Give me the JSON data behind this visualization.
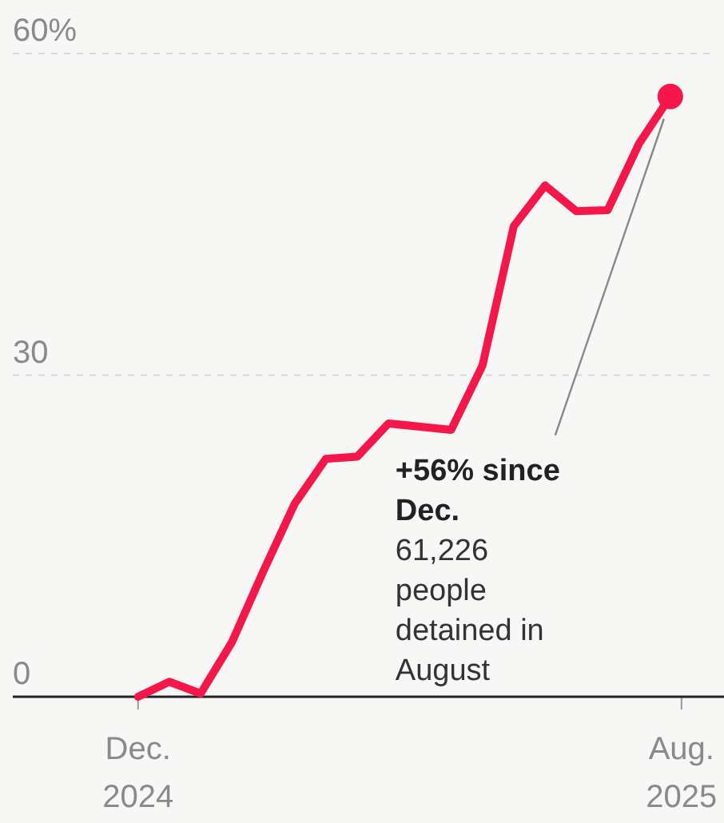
{
  "chart_data": {
    "type": "line",
    "x": [
      "2024-12-01",
      "2024-12-15",
      "2024-12-29",
      "2025-01-12",
      "2025-01-26",
      "2025-02-09",
      "2025-02-23",
      "2025-03-09",
      "2025-03-23",
      "2025-04-06",
      "2025-04-20",
      "2025-05-04",
      "2025-05-18",
      "2025-06-01",
      "2025-06-15",
      "2025-06-29",
      "2025-07-13",
      "2025-07-27"
    ],
    "series": [
      {
        "color": "#f5164a",
        "values": [
          0,
          1.4,
          0.3,
          5.1,
          11.7,
          18,
          22.2,
          22.4,
          25.5,
          25.2,
          24.9,
          30.9,
          43.9,
          47.7,
          45.3,
          45.4,
          51.6,
          56
        ]
      },
      {
        "type": "scatter",
        "color": "#f5164a",
        "marker": "circle",
        "x": [
          "2025-07-27"
        ],
        "values": [
          56
        ]
      }
    ],
    "xlim": [
      "2024-10-06",
      "2025-08-20"
    ],
    "xticks": [
      {
        "value": "2024-12-01",
        "label": "Dec.\n2024"
      },
      {
        "value": "2025-08-01",
        "label": "Aug.\n2025"
      }
    ],
    "ylim": [
      0,
      65
    ],
    "yticks": [
      0,
      30,
      {
        "value": 60,
        "label": "60%"
      }
    ],
    "grid": "y",
    "marker": "none",
    "line_style": "solid",
    "annotations": [
      "+56% since Dec.",
      "61,226 people detained in August"
    ]
  }
}
